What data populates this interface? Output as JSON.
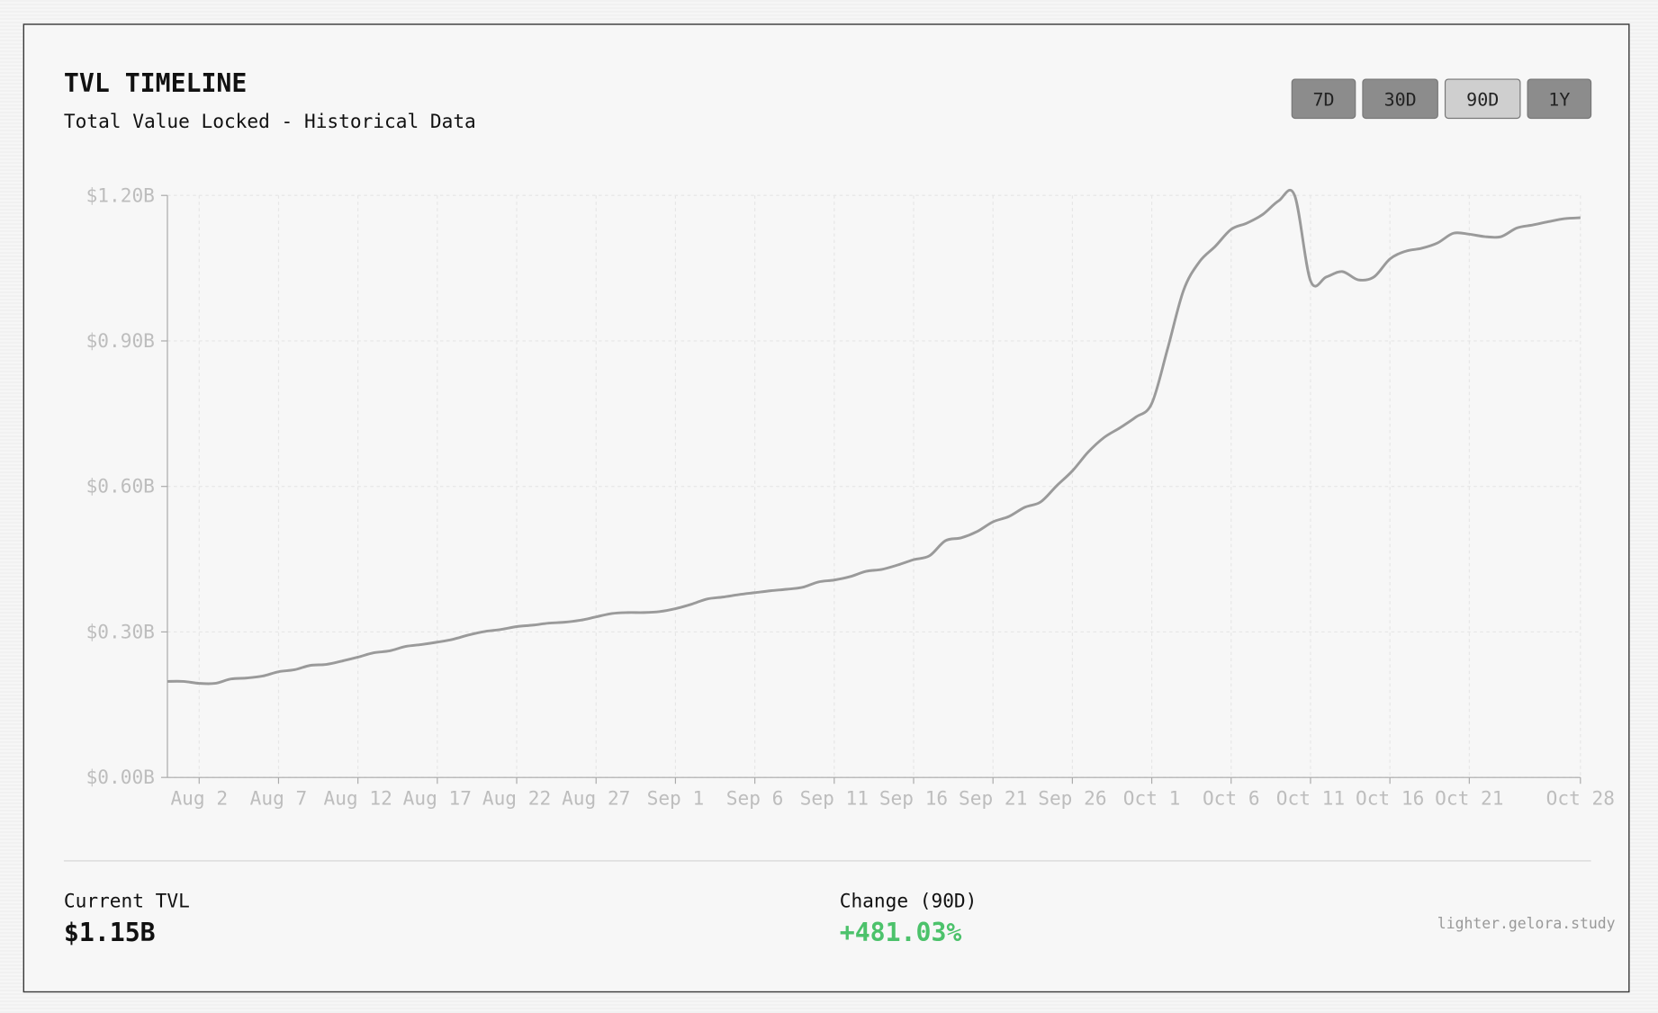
{
  "header": {
    "title": "TVL TIMELINE",
    "subtitle": "Total Value Locked - Historical Data"
  },
  "range_buttons": [
    {
      "label": "7D",
      "active": false
    },
    {
      "label": "30D",
      "active": false
    },
    {
      "label": "90D",
      "active": true
    },
    {
      "label": "1Y",
      "active": false
    }
  ],
  "chart_data": {
    "type": "line",
    "categories": [
      null,
      null,
      "Aug 2",
      null,
      null,
      null,
      null,
      "Aug 7",
      null,
      null,
      null,
      null,
      "Aug 12",
      null,
      null,
      null,
      null,
      "Aug 17",
      null,
      null,
      null,
      null,
      "Aug 22",
      null,
      null,
      null,
      null,
      "Aug 27",
      null,
      null,
      null,
      null,
      "Sep 1",
      null,
      null,
      null,
      null,
      "Sep 6",
      null,
      null,
      null,
      null,
      "Sep 11",
      null,
      null,
      null,
      null,
      "Sep 16",
      null,
      null,
      null,
      null,
      "Sep 21",
      null,
      null,
      null,
      null,
      "Sep 26",
      null,
      null,
      null,
      null,
      "Oct 1",
      null,
      null,
      null,
      null,
      "Oct 6",
      null,
      null,
      null,
      null,
      "Oct 11",
      null,
      null,
      null,
      null,
      "Oct 16",
      null,
      null,
      null,
      null,
      "Oct 21",
      null,
      null,
      null,
      null,
      null,
      null,
      "Oct 28"
    ],
    "values": [
      0.198,
      0.198,
      0.194,
      0.194,
      0.203,
      0.205,
      0.209,
      0.218,
      0.222,
      0.231,
      0.233,
      0.24,
      0.248,
      0.257,
      0.261,
      0.27,
      0.274,
      0.279,
      0.285,
      0.294,
      0.301,
      0.305,
      0.311,
      0.314,
      0.318,
      0.32,
      0.324,
      0.331,
      0.338,
      0.34,
      0.34,
      0.342,
      0.348,
      0.357,
      0.368,
      0.372,
      0.377,
      0.381,
      0.385,
      0.388,
      0.392,
      0.403,
      0.407,
      0.414,
      0.425,
      0.429,
      0.438,
      0.449,
      0.457,
      0.488,
      0.494,
      0.507,
      0.527,
      0.538,
      0.557,
      0.568,
      0.601,
      0.632,
      0.671,
      0.701,
      0.721,
      0.743,
      0.771,
      0.884,
      1.004,
      1.063,
      1.095,
      1.13,
      1.143,
      1.161,
      1.189,
      1.2,
      1.024,
      1.032,
      1.043,
      1.026,
      1.032,
      1.069,
      1.085,
      1.091,
      1.102,
      1.122,
      1.12,
      1.115,
      1.115,
      1.133,
      1.139,
      1.146,
      1.152,
      1.154
    ],
    "color": "#9a9a9a",
    "ylim": [
      0,
      1.2
    ],
    "yticks": [
      {
        "value": 0,
        "label": "$0.00B"
      },
      {
        "value": 0.3,
        "label": "$0.30B"
      },
      {
        "value": 0.6,
        "label": "$0.60B"
      },
      {
        "value": 0.9,
        "label": "$0.90B"
      },
      {
        "value": 1.2,
        "label": "$1.20B"
      }
    ],
    "grid": true
  },
  "stats": [
    {
      "label": "Current TVL",
      "value": "$1.15B",
      "color": "#111111"
    },
    {
      "label": "Change (90D)",
      "value": "+481.03%",
      "color": "#4cc26b"
    }
  ],
  "footer": {
    "watermark": "lighter.gelora.study"
  }
}
